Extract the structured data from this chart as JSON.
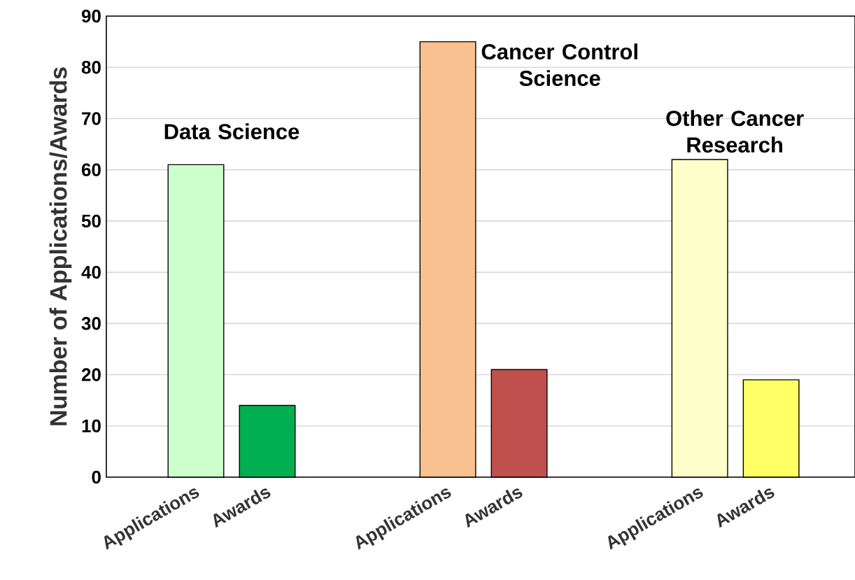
{
  "chart_data": {
    "type": "bar",
    "ylabel": "Number of Applications/Awards",
    "categories": [
      "Applications",
      "Awards",
      "Applications",
      "Awards",
      "Applications",
      "Awards"
    ],
    "values": [
      61,
      14,
      85,
      21,
      62,
      19
    ],
    "colors": [
      "#ccffcc",
      "#00b050",
      "#f9c090",
      "#c0504d",
      "#ffffcc",
      "#ffff66"
    ],
    "ylim": [
      0,
      90
    ],
    "yticks": [
      0,
      10,
      20,
      30,
      40,
      50,
      60,
      70,
      80,
      90
    ],
    "grid": "y",
    "annotations": [
      "Data Science",
      "Cancer Control Science",
      "Other Cancer Research"
    ]
  }
}
